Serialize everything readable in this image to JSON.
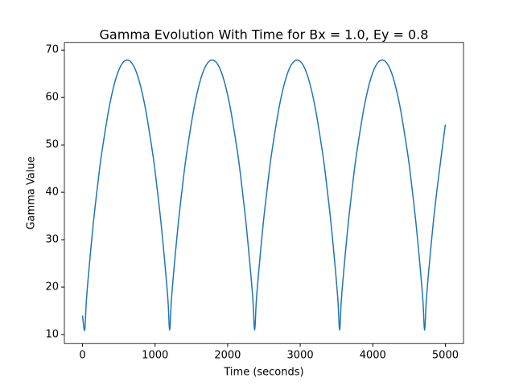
{
  "chart_data": {
    "type": "line",
    "title": "Gamma Evolution With Time for Bx = 1.0, Ey = 0.8",
    "xlabel": "Time (seconds)",
    "ylabel": "Gamma Value",
    "x": [
      0,
      30,
      53,
      89,
      147,
      206,
      264,
      381,
      498,
      616,
      733,
      850,
      967,
      1025,
      1084,
      1142,
      1178,
      1201,
      1224,
      1260,
      1318,
      1377,
      1435,
      1552,
      1669,
      1787,
      1904,
      2021,
      2138,
      2196,
      2255,
      2313,
      2349,
      2372,
      2395,
      2431,
      2489,
      2548,
      2606,
      2723,
      2840,
      2958,
      3075,
      3192,
      3309,
      3367,
      3426,
      3484,
      3520,
      3543,
      3566,
      3602,
      3660,
      3719,
      3777,
      3894,
      4011,
      4129,
      4246,
      4363,
      4480,
      4538,
      4597,
      4655,
      4691,
      4714,
      4737,
      4773,
      4831,
      4890,
      4948,
      5000
    ],
    "series": [
      {
        "color": "#1f77b4",
        "values": [
          14.0,
          10.9,
          17.1,
          23.8,
          33.2,
          41.2,
          48.2,
          59.0,
          65.7,
          67.9,
          65.7,
          59.0,
          48.2,
          41.2,
          33.2,
          23.8,
          17.1,
          10.9,
          17.1,
          23.8,
          33.2,
          41.2,
          48.2,
          59.0,
          65.7,
          67.9,
          65.7,
          59.0,
          48.2,
          41.2,
          33.2,
          23.8,
          17.1,
          10.9,
          17.1,
          23.8,
          33.2,
          41.2,
          48.2,
          59.0,
          65.7,
          67.9,
          65.7,
          59.0,
          48.2,
          41.2,
          33.2,
          23.8,
          17.1,
          10.9,
          17.1,
          23.8,
          33.2,
          41.2,
          48.2,
          59.0,
          65.7,
          67.9,
          65.7,
          59.0,
          48.2,
          41.2,
          33.2,
          23.8,
          17.1,
          10.9,
          17.1,
          23.8,
          33.2,
          41.2,
          48.2,
          54.3
        ]
      }
    ],
    "xlim": [
      -250,
      5250
    ],
    "xticks": [
      0,
      1000,
      2000,
      3000,
      4000,
      5000
    ],
    "ylim": [
      8.1,
      71.6
    ],
    "yticks": [
      10,
      20,
      30,
      40,
      50,
      60,
      70
    ]
  }
}
